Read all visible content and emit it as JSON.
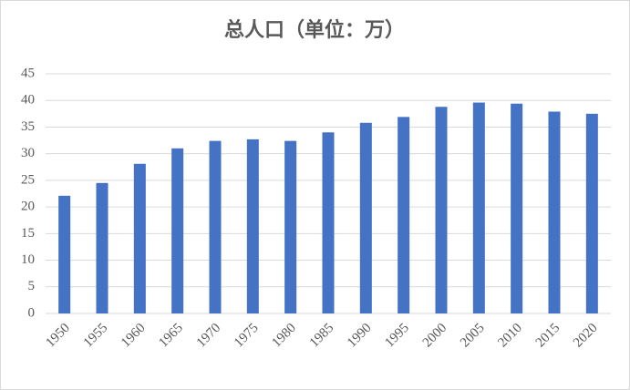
{
  "chart_data": {
    "type": "bar",
    "title": "总人口（单位：万）",
    "categories": [
      "1950",
      "1955",
      "1960",
      "1965",
      "1970",
      "1975",
      "1980",
      "1985",
      "1990",
      "1995",
      "2000",
      "2005",
      "2010",
      "2015",
      "2020"
    ],
    "values": [
      22.1,
      24.5,
      28.1,
      31.0,
      32.4,
      32.7,
      32.4,
      34.0,
      35.8,
      36.9,
      38.8,
      39.6,
      39.4,
      37.9,
      37.5
    ],
    "color": "#4472c4",
    "ylim": [
      0,
      45
    ],
    "yticks": [
      0,
      5,
      10,
      15,
      20,
      25,
      30,
      35,
      40,
      45
    ],
    "grid": true
  }
}
